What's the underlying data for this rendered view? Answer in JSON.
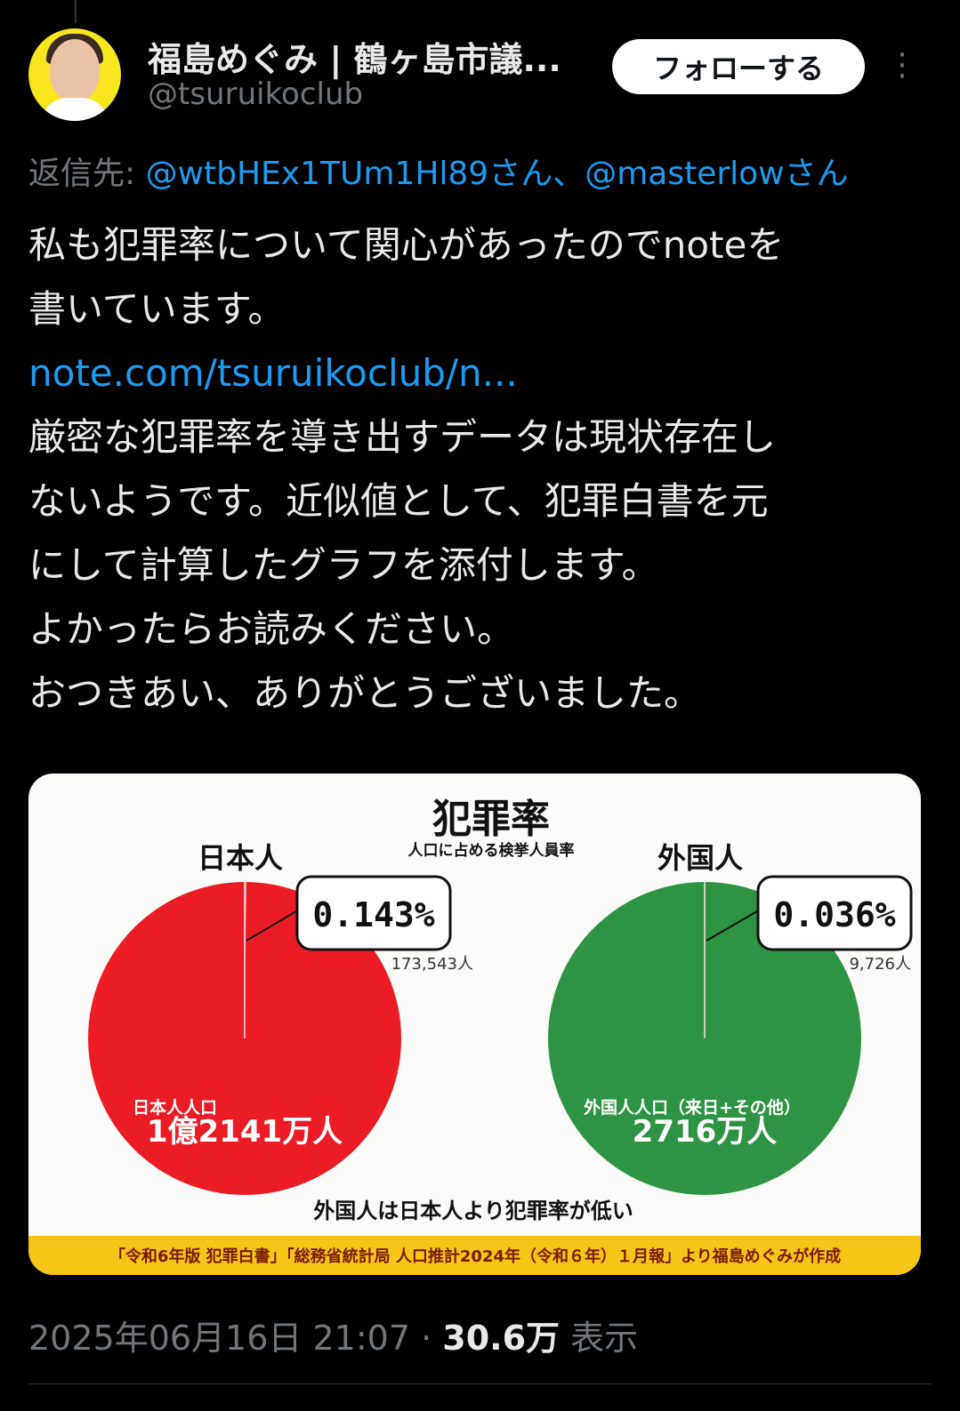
{
  "author": {
    "name": "福島めぐみ | 鶴ヶ島市議...",
    "handle": "@tsuruikoclub",
    "follow_label": "フォローする"
  },
  "reply": {
    "prefix": "返信先: ",
    "mentions": "@wtbHEx1TUm1Hl89さん、@masterlowさん"
  },
  "tweet": {
    "line1": "私も犯罪率について関心があったのでnoteを",
    "line2": "書いています。",
    "link": "note.com/tsuruikoclub/n...",
    "line3": "厳密な犯罪率を導き出すデータは現状存在し",
    "line4": "ないようです。近似値として、犯罪白書を元",
    "line5": "にして計算したグラフを添付します。",
    "line6": "よかったらお読みください。",
    "line7": "おつきあい、ありがとうございました。"
  },
  "chart_data": {
    "type": "pie",
    "title": "犯罪率",
    "subtitle": "人口に占める検挙人員率",
    "charts": [
      {
        "label": "日本人",
        "percent_label": "0.143%",
        "percent": 0.143,
        "arrested_label": "173,543人",
        "population_caption": "日本人人口",
        "population_value": "1億2141万人",
        "color": "#ec1c24"
      },
      {
        "label": "外国人",
        "percent_label": "0.036%",
        "percent": 0.036,
        "arrested_label": "9,726人",
        "population_caption": "外国人人口（来日+その他）",
        "population_value": "2716万人",
        "color": "#2e9444"
      }
    ],
    "conclusion": "外国人は日本人より犯罪率が低い",
    "source": "「令和6年版 犯罪白書」「総務省統計局 人口推計2024年（令和６年）１月報」より福島めぐみが作成",
    "source_bar_color": "#f5c518"
  },
  "meta": {
    "datetime": "2025年06月16日 21:07",
    "sep": " · ",
    "views": "30.6万",
    "views_label": " 表示"
  }
}
